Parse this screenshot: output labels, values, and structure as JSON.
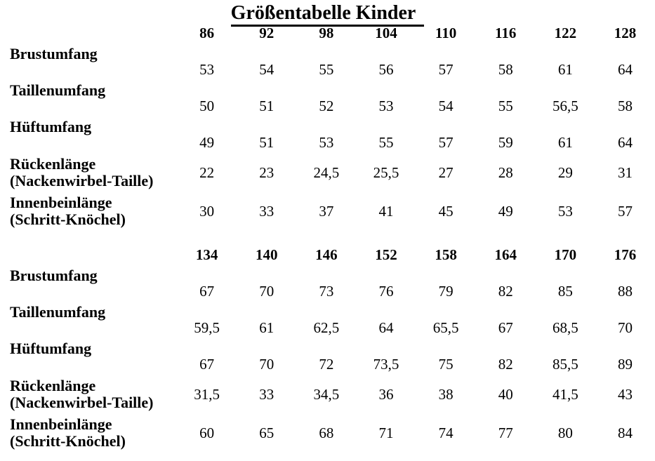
{
  "title": "Größentabelle Kinder",
  "colors": {
    "text": "#000000",
    "background": "#ffffff"
  },
  "tables": [
    {
      "sizes": [
        "86",
        "92",
        "98",
        "104",
        "110",
        "116",
        "122",
        "128"
      ],
      "rows": [
        {
          "label": "Brustumfang",
          "label2": "",
          "values": [
            "53",
            "54",
            "55",
            "56",
            "57",
            "58",
            "61",
            "64"
          ]
        },
        {
          "label": "Taillenumfang",
          "label2": "",
          "values": [
            "50",
            "51",
            "52",
            "53",
            "54",
            "55",
            "56,5",
            "58"
          ]
        },
        {
          "label": "Hüftumfang",
          "label2": "",
          "values": [
            "49",
            "51",
            "53",
            "55",
            "57",
            "59",
            "61",
            "64"
          ]
        },
        {
          "label": "Rückenlänge",
          "label2": "(Nackenwirbel-Taille)",
          "values": [
            "22",
            "23",
            "24,5",
            "25,5",
            "27",
            "28",
            "29",
            "31"
          ]
        },
        {
          "label": "Innenbeinlänge",
          "label2": "(Schritt-Knöchel)",
          "values": [
            "30",
            "33",
            "37",
            "41",
            "45",
            "49",
            "53",
            "57"
          ]
        }
      ]
    },
    {
      "sizes": [
        "134",
        "140",
        "146",
        "152",
        "158",
        "164",
        "170",
        "176"
      ],
      "rows": [
        {
          "label": "Brustumfang",
          "label2": "",
          "values": [
            "67",
            "70",
            "73",
            "76",
            "79",
            "82",
            "85",
            "88"
          ]
        },
        {
          "label": "Taillenumfang",
          "label2": "",
          "values": [
            "59,5",
            "61",
            "62,5",
            "64",
            "65,5",
            "67",
            "68,5",
            "70"
          ]
        },
        {
          "label": "Hüftumfang",
          "label2": "",
          "values": [
            "67",
            "70",
            "72",
            "73,5",
            "75",
            "82",
            "85,5",
            "89"
          ]
        },
        {
          "label": "Rückenlänge",
          "label2": "(Nackenwirbel-Taille)",
          "values": [
            "31,5",
            "33",
            "34,5",
            "36",
            "38",
            "40",
            "41,5",
            "43"
          ]
        },
        {
          "label": "Innenbeinlänge",
          "label2": "(Schritt-Knöchel)",
          "values": [
            "60",
            "65",
            "68",
            "71",
            "74",
            "77",
            "80",
            "84"
          ]
        }
      ]
    }
  ]
}
